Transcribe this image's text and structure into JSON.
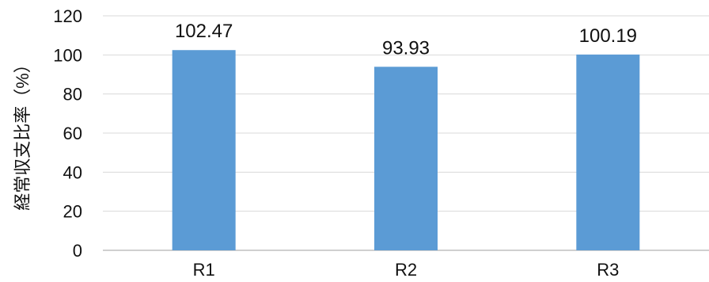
{
  "chart_data": {
    "type": "bar",
    "categories": [
      "R1",
      "R2",
      "R3"
    ],
    "values": [
      102.47,
      93.93,
      100.19
    ],
    "data_labels": [
      "102.47",
      "93.93",
      "100.19"
    ],
    "title": "",
    "xlabel": "",
    "ylabel": "経常収支比率（%）",
    "ylim": [
      0,
      120
    ],
    "yticks": [
      0,
      20,
      40,
      60,
      80,
      100,
      120
    ],
    "grid": true,
    "legend": "none",
    "bar_color": "#5B9BD5",
    "grid_color": "#D9D9D9",
    "axis_color": "#BFBFBF"
  }
}
